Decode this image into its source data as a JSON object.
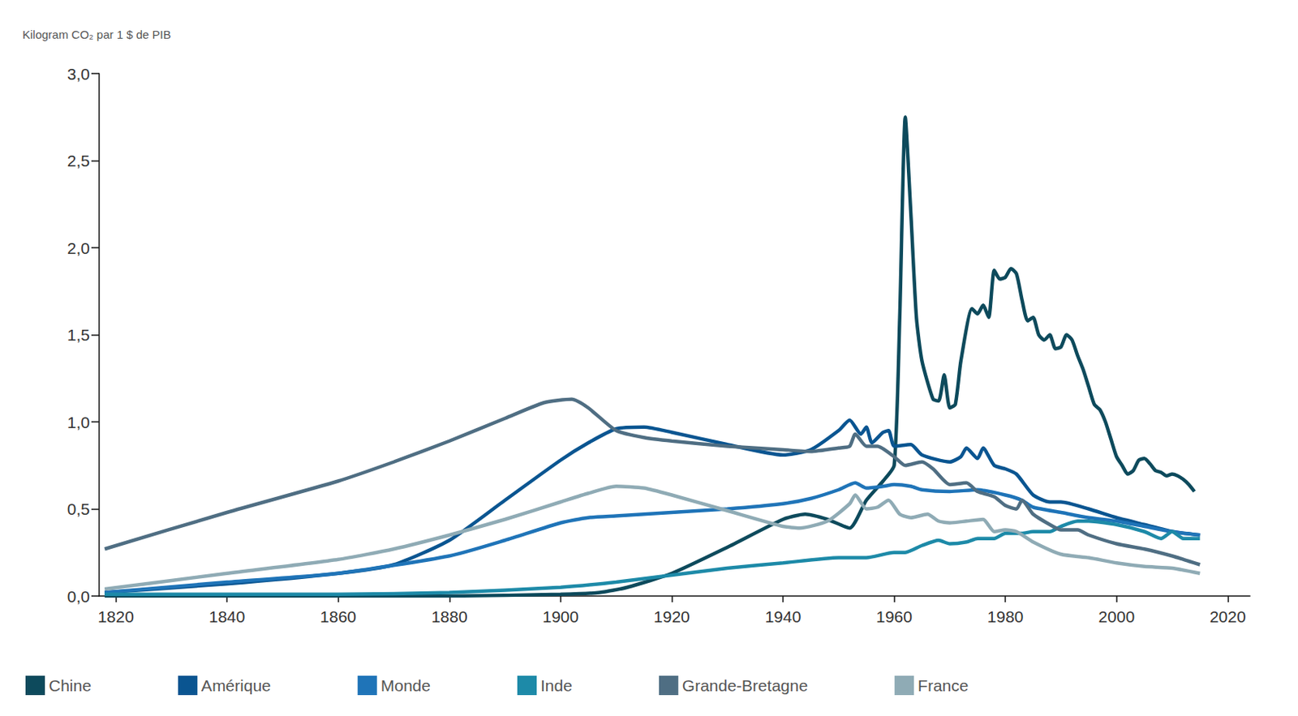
{
  "chart_data": {
    "type": "line",
    "title": "Kilogram CO₂ par 1 $ de PIB",
    "xlim": [
      1817,
      2024
    ],
    "xticks": [
      1820,
      1840,
      1860,
      1880,
      1900,
      1920,
      1940,
      1960,
      1980,
      2000,
      2020
    ],
    "ylim": [
      0,
      3
    ],
    "yticks": [
      {
        "value": 0,
        "label": "0,0"
      },
      {
        "value": 0.5,
        "label": "0,5"
      },
      {
        "value": 1,
        "label": "1,0"
      },
      {
        "value": 1.5,
        "label": "1,5"
      },
      {
        "value": 2,
        "label": "2,0"
      },
      {
        "value": 2.5,
        "label": "2,5"
      },
      {
        "value": 3,
        "label": "3,0"
      }
    ],
    "grid": false,
    "legend": "bottom",
    "series": [
      {
        "name": "Chine",
        "color": "#0d4a5c",
        "x": [
          1818,
          1880,
          1900,
          1907,
          1912,
          1920,
          1930,
          1940,
          1944,
          1948,
          1952,
          1955,
          1958,
          1960,
          1961,
          1962,
          1963,
          1964,
          1965,
          1967,
          1968,
          1969,
          1970,
          1971,
          1972,
          1974,
          1975,
          1976,
          1977,
          1978,
          1979,
          1980,
          1981,
          1982,
          1983,
          1984,
          1985,
          1986,
          1987,
          1988,
          1989,
          1990,
          1991,
          1992,
          1993,
          1994,
          1995,
          1996,
          1997,
          1998,
          1999,
          2000,
          2001,
          2002,
          2003,
          2004,
          2005,
          2006,
          2007,
          2008,
          2009,
          2010,
          2011,
          2012,
          2013,
          2014
        ],
        "values": [
          0,
          0,
          0.01,
          0.02,
          0.05,
          0.13,
          0.28,
          0.44,
          0.47,
          0.44,
          0.39,
          0.55,
          0.66,
          0.75,
          1.6,
          2.75,
          2.2,
          1.6,
          1.35,
          1.13,
          1.12,
          1.27,
          1.08,
          1.1,
          1.35,
          1.65,
          1.62,
          1.67,
          1.6,
          1.87,
          1.82,
          1.83,
          1.88,
          1.85,
          1.7,
          1.58,
          1.6,
          1.5,
          1.47,
          1.5,
          1.42,
          1.43,
          1.5,
          1.47,
          1.38,
          1.3,
          1.2,
          1.1,
          1.07,
          1.0,
          0.9,
          0.8,
          0.75,
          0.7,
          0.72,
          0.78,
          0.79,
          0.76,
          0.72,
          0.71,
          0.69,
          0.7,
          0.69,
          0.67,
          0.64,
          0.6
        ]
      },
      {
        "name": "Amérique",
        "color": "#0a5591",
        "x": [
          1818,
          1840,
          1860,
          1870,
          1880,
          1890,
          1900,
          1905,
          1910,
          1915,
          1920,
          1930,
          1940,
          1945,
          1950,
          1952,
          1954,
          1955,
          1956,
          1958,
          1959,
          1960,
          1963,
          1965,
          1970,
          1972,
          1973,
          1975,
          1976,
          1978,
          1980,
          1982,
          1985,
          1988,
          1990,
          1995,
          2000,
          2005,
          2010,
          2015
        ],
        "values": [
          0.02,
          0.07,
          0.13,
          0.18,
          0.32,
          0.55,
          0.78,
          0.88,
          0.96,
          0.97,
          0.94,
          0.87,
          0.81,
          0.84,
          0.95,
          1.01,
          0.93,
          0.97,
          0.88,
          0.94,
          0.95,
          0.86,
          0.87,
          0.81,
          0.77,
          0.8,
          0.85,
          0.79,
          0.85,
          0.75,
          0.73,
          0.7,
          0.58,
          0.54,
          0.54,
          0.5,
          0.45,
          0.41,
          0.37,
          0.35
        ]
      },
      {
        "name": "Monde",
        "color": "#1f74b8",
        "x": [
          1818,
          1840,
          1860,
          1880,
          1890,
          1900,
          1905,
          1910,
          1920,
          1930,
          1940,
          1945,
          1950,
          1953,
          1955,
          1958,
          1960,
          1963,
          1965,
          1970,
          1975,
          1980,
          1983,
          1985,
          1990,
          1995,
          2000,
          2005,
          2010,
          2015
        ],
        "values": [
          0.02,
          0.08,
          0.13,
          0.23,
          0.32,
          0.42,
          0.45,
          0.46,
          0.48,
          0.5,
          0.53,
          0.56,
          0.61,
          0.65,
          0.62,
          0.63,
          0.64,
          0.63,
          0.61,
          0.6,
          0.61,
          0.58,
          0.55,
          0.51,
          0.48,
          0.45,
          0.43,
          0.4,
          0.37,
          0.35
        ]
      },
      {
        "name": "Inde",
        "color": "#1d8aa8",
        "x": [
          1818,
          1860,
          1880,
          1900,
          1910,
          1920,
          1930,
          1940,
          1950,
          1955,
          1960,
          1962,
          1965,
          1968,
          1970,
          1973,
          1975,
          1978,
          1980,
          1983,
          1985,
          1988,
          1990,
          1993,
          1995,
          2000,
          2005,
          2008,
          2010,
          2012,
          2015
        ],
        "values": [
          0.01,
          0.01,
          0.02,
          0.05,
          0.08,
          0.12,
          0.16,
          0.19,
          0.22,
          0.22,
          0.25,
          0.25,
          0.29,
          0.32,
          0.3,
          0.31,
          0.33,
          0.33,
          0.36,
          0.36,
          0.37,
          0.37,
          0.4,
          0.43,
          0.43,
          0.41,
          0.37,
          0.33,
          0.37,
          0.33,
          0.33
        ]
      },
      {
        "name": "Grande-Bretagne",
        "color": "#4f6e83",
        "x": [
          1818,
          1840,
          1860,
          1870,
          1880,
          1890,
          1897,
          1902,
          1905,
          1910,
          1915,
          1920,
          1930,
          1940,
          1945,
          1950,
          1952,
          1953,
          1955,
          1957,
          1960,
          1962,
          1965,
          1967,
          1970,
          1973,
          1975,
          1978,
          1980,
          1982,
          1983,
          1985,
          1988,
          1990,
          1993,
          1995,
          2000,
          2005,
          2010,
          2013,
          2015
        ],
        "values": [
          0.27,
          0.48,
          0.66,
          0.77,
          0.89,
          1.02,
          1.11,
          1.13,
          1.08,
          0.95,
          0.91,
          0.89,
          0.86,
          0.84,
          0.83,
          0.85,
          0.86,
          0.93,
          0.86,
          0.86,
          0.8,
          0.75,
          0.77,
          0.73,
          0.64,
          0.65,
          0.6,
          0.57,
          0.52,
          0.5,
          0.55,
          0.47,
          0.41,
          0.38,
          0.38,
          0.35,
          0.3,
          0.27,
          0.23,
          0.2,
          0.18
        ]
      },
      {
        "name": "France",
        "color": "#8fabb5",
        "x": [
          1818,
          1840,
          1860,
          1870,
          1880,
          1890,
          1900,
          1905,
          1910,
          1915,
          1920,
          1930,
          1940,
          1943,
          1948,
          1952,
          1953,
          1955,
          1957,
          1959,
          1961,
          1963,
          1966,
          1968,
          1970,
          1973,
          1976,
          1978,
          1980,
          1982,
          1985,
          1990,
          1995,
          2000,
          2005,
          2010,
          2015
        ],
        "values": [
          0.04,
          0.13,
          0.21,
          0.27,
          0.35,
          0.44,
          0.54,
          0.59,
          0.63,
          0.62,
          0.58,
          0.49,
          0.4,
          0.39,
          0.43,
          0.53,
          0.58,
          0.5,
          0.51,
          0.55,
          0.47,
          0.45,
          0.47,
          0.43,
          0.42,
          0.43,
          0.44,
          0.37,
          0.38,
          0.37,
          0.31,
          0.24,
          0.22,
          0.19,
          0.17,
          0.16,
          0.13
        ]
      }
    ]
  }
}
